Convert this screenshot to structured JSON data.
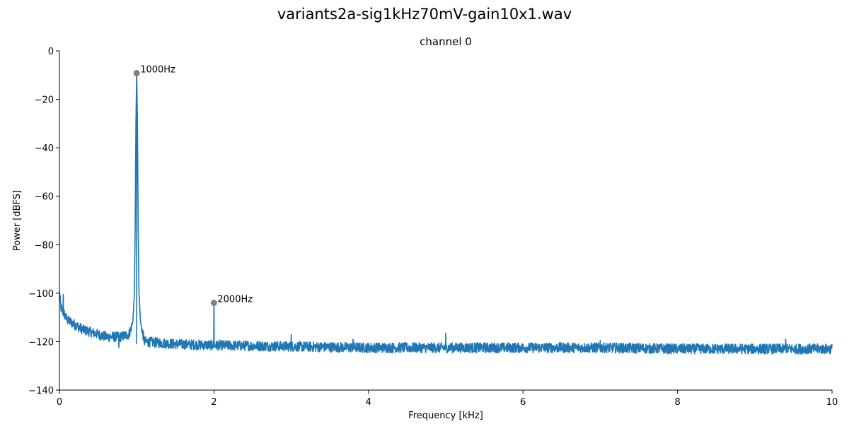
{
  "figure": {
    "suptitle": "variants2a-sig1kHz70mV-gain10x1.wav"
  },
  "chart_data": {
    "type": "line",
    "title": "channel 0",
    "xlabel": "Frequency [kHz]",
    "ylabel": "Power [dBFS]",
    "xlim": [
      0,
      10
    ],
    "ylim": [
      -140,
      0
    ],
    "xticks": [
      0,
      2,
      4,
      6,
      8,
      10
    ],
    "xtick_labels": [
      "0",
      "2",
      "4",
      "6",
      "8",
      "10"
    ],
    "yticks": [
      0,
      -20,
      -40,
      -60,
      -80,
      -100,
      -120,
      -140
    ],
    "ytick_labels": [
      "0",
      "−20",
      "−40",
      "−60",
      "−80",
      "−100",
      "−120",
      "−140"
    ],
    "grid": false,
    "colors": {
      "line": "#1f77b4",
      "marker": "#808080"
    },
    "spectrum_profile": {
      "x": [
        0.0,
        0.02,
        0.05,
        0.1,
        0.2,
        0.3,
        0.4,
        0.5,
        0.6,
        0.7,
        0.8,
        0.9,
        0.95,
        0.97,
        0.98,
        0.99,
        1.0,
        1.01,
        1.02,
        1.03,
        1.05,
        1.1,
        1.5,
        2.0,
        3.0,
        4.0,
        5.0,
        6.0,
        7.0,
        8.0,
        9.0,
        10.0
      ],
      "y": [
        -100,
        -106,
        -108,
        -111,
        -113,
        -115,
        -116,
        -117,
        -118,
        -118,
        -118,
        -117,
        -112,
        -100,
        -75,
        -30,
        -9,
        -30,
        -75,
        -100,
        -112,
        -120,
        -121,
        -121.5,
        -122,
        -122.5,
        -122.5,
        -122.5,
        -122.5,
        -123,
        -123,
        -123
      ]
    },
    "spectral_lines": [
      {
        "x": 0.05,
        "y": -100.5
      },
      {
        "x": 0.77,
        "y": -122.5
      },
      {
        "x": 2.0,
        "y": -104
      },
      {
        "x": 3.0,
        "y": -117
      },
      {
        "x": 3.8,
        "y": -119
      },
      {
        "x": 5.0,
        "y": -116.5
      },
      {
        "x": 7.0,
        "y": -119.5
      },
      {
        "x": 9.4,
        "y": -119
      }
    ],
    "peaks": [
      {
        "x": 1.0,
        "y": -9.2,
        "label": "1000Hz"
      },
      {
        "x": 2.0,
        "y": -104.0,
        "label": "2000Hz"
      }
    ]
  }
}
